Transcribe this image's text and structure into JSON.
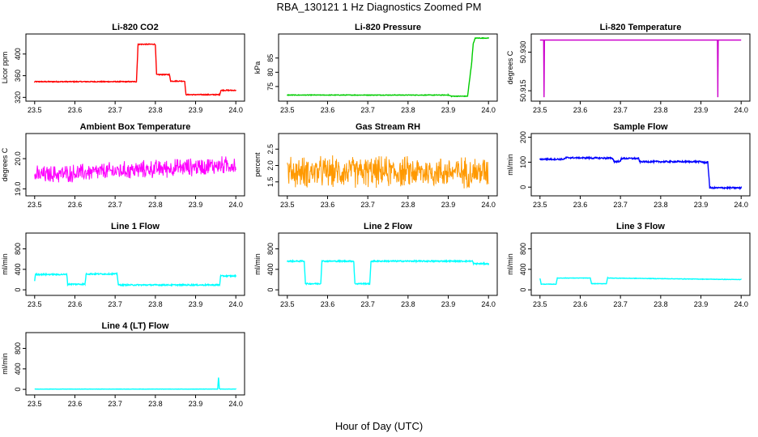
{
  "figure": {
    "title": "RBA_130121  1 Hz Diagnostics Zoomed PM",
    "xlabel": "Hour of Day (UTC)"
  },
  "chart_data": [
    {
      "id": "p1",
      "type": "line",
      "title": "Li-820 CO2",
      "ylabel": "Licor ppm",
      "color": "#ff0000",
      "xlim": [
        23.5,
        24.0
      ],
      "ylim": [
        318,
        432
      ],
      "xticks": [
        "23.5",
        "23.6",
        "23.7",
        "23.8",
        "23.9",
        "24.0"
      ],
      "yticks": [
        320,
        360,
        400
      ],
      "series": [
        {
          "name": "CO2",
          "noise": 0.8,
          "points": [
            [
              23.5,
              349
            ],
            [
              23.753,
              349
            ],
            [
              23.757,
              418
            ],
            [
              23.8,
              418
            ],
            [
              23.803,
              362
            ],
            [
              23.835,
              362
            ],
            [
              23.838,
              350
            ],
            [
              23.873,
              350
            ],
            [
              23.876,
              325
            ],
            [
              23.96,
              325
            ],
            [
              23.963,
              333
            ],
            [
              24.0,
              333
            ]
          ]
        }
      ]
    },
    {
      "id": "p2",
      "type": "line",
      "title": "Li-820 Pressure",
      "ylabel": "kPa",
      "color": "#00cc00",
      "xlim": [
        23.5,
        24.0
      ],
      "ylim": [
        70.8,
        92.5
      ],
      "xticks": [
        "23.5",
        "23.6",
        "23.7",
        "23.8",
        "23.9",
        "24.0"
      ],
      "yticks": [
        75,
        80,
        85
      ],
      "series": [
        {
          "name": "Pressure",
          "noise": 0.1,
          "points": [
            [
              23.5,
              72
            ],
            [
              23.9,
              72
            ],
            [
              23.908,
              71.6
            ],
            [
              23.948,
              71.6
            ],
            [
              23.958,
              83
            ],
            [
              23.962,
              90
            ],
            [
              23.967,
              92
            ],
            [
              24.0,
              92
            ]
          ]
        }
      ]
    },
    {
      "id": "p3",
      "type": "line",
      "title": "Li-820 Temperature",
      "ylabel": "degrees C",
      "color": "#cc00cc",
      "xlim": [
        23.5,
        24.0
      ],
      "ylim": [
        50.912,
        50.936
      ],
      "xticks": [
        "23.5",
        "23.6",
        "23.7",
        "23.8",
        "23.9",
        "24.0"
      ],
      "yticks": [
        "50.915",
        "50.930"
      ],
      "series": [
        {
          "name": "Temperature",
          "noise": 0,
          "points": [
            [
              23.5,
              50.9347
            ],
            [
              23.509,
              50.9347
            ],
            [
              23.51,
              50.9125
            ],
            [
              23.511,
              50.9347
            ],
            [
              23.941,
              50.9347
            ],
            [
              23.942,
              50.9125
            ],
            [
              23.943,
              50.9347
            ],
            [
              24.0,
              50.9347
            ]
          ]
        }
      ]
    },
    {
      "id": "p4",
      "type": "noise",
      "title": "Ambient Box Temperature",
      "ylabel": "degrees C",
      "color": "#ff00ff",
      "xlim": [
        23.5,
        24.0
      ],
      "ylim": [
        18.85,
        20.75
      ],
      "xticks": [
        "23.5",
        "23.6",
        "23.7",
        "23.8",
        "23.9",
        "24.0"
      ],
      "yticks": [
        "19.0",
        "20.0"
      ],
      "series": [
        {
          "name": "Ambient",
          "base_start": 19.45,
          "base_end": 19.8,
          "amp": 0.35,
          "min": 18.9,
          "max": 20.7
        }
      ]
    },
    {
      "id": "p5",
      "type": "noise",
      "title": "Gas Stream RH",
      "ylabel": "percent",
      "color": "#ff9900",
      "xlim": [
        23.5,
        24.0
      ],
      "ylim": [
        1.15,
        2.9
      ],
      "xticks": [
        "23.5",
        "23.6",
        "23.7",
        "23.8",
        "23.9",
        "24.0"
      ],
      "yticks": [
        "1.5",
        "2.0",
        "2.5"
      ],
      "series": [
        {
          "name": "RH",
          "base_start": 1.8,
          "base_end": 1.8,
          "amp": 0.55,
          "min": 1.2,
          "max": 2.85
        }
      ]
    },
    {
      "id": "p6",
      "type": "line",
      "title": "Sample Flow",
      "ylabel": "ml/min",
      "color": "#0000ff",
      "xlim": [
        23.5,
        24.0
      ],
      "ylim": [
        -25,
        205
      ],
      "xticks": [
        "23.5",
        "23.6",
        "23.7",
        "23.8",
        "23.9",
        "24.0"
      ],
      "yticks": [
        0,
        100,
        200
      ],
      "series": [
        {
          "name": "Sample",
          "noise": 3,
          "points": [
            [
              23.5,
              112
            ],
            [
              23.56,
              112
            ],
            [
              23.565,
              118
            ],
            [
              23.68,
              116
            ],
            [
              23.685,
              102
            ],
            [
              23.7,
              104
            ],
            [
              23.702,
              115
            ],
            [
              23.745,
              115
            ],
            [
              23.748,
              102
            ],
            [
              23.9,
              102
            ],
            [
              23.91,
              98
            ],
            [
              23.917,
              100
            ],
            [
              23.922,
              -3
            ],
            [
              24.0,
              -3
            ]
          ]
        }
      ]
    },
    {
      "id": "p7",
      "type": "line",
      "title": "Line 1 Flow",
      "ylabel": "ml/min",
      "color": "#00ffff",
      "xlim": [
        23.5,
        24.0
      ],
      "ylim": [
        -60,
        1060
      ],
      "xticks": [
        "23.5",
        "23.6",
        "23.7",
        "23.8",
        "23.9",
        "24.0"
      ],
      "yticks": [
        0,
        400,
        800
      ],
      "series": [
        {
          "name": "Line1",
          "noise": 12,
          "points": [
            [
              23.5,
              180
            ],
            [
              23.502,
              300
            ],
            [
              23.58,
              300
            ],
            [
              23.582,
              110
            ],
            [
              23.625,
              110
            ],
            [
              23.628,
              310
            ],
            [
              23.705,
              310
            ],
            [
              23.708,
              95
            ],
            [
              23.96,
              95
            ],
            [
              23.962,
              270
            ],
            [
              24.0,
              270
            ]
          ]
        }
      ]
    },
    {
      "id": "p8",
      "type": "line",
      "title": "Line 2 Flow",
      "ylabel": "ml/min",
      "color": "#00ffff",
      "xlim": [
        23.5,
        24.0
      ],
      "ylim": [
        -60,
        1060
      ],
      "xticks": [
        "23.5",
        "23.6",
        "23.7",
        "23.8",
        "23.9",
        "24.0"
      ],
      "yticks": [
        0,
        400,
        800
      ],
      "series": [
        {
          "name": "Line2",
          "noise": 12,
          "points": [
            [
              23.5,
              560
            ],
            [
              23.542,
              560
            ],
            [
              23.545,
              120
            ],
            [
              23.583,
              120
            ],
            [
              23.586,
              560
            ],
            [
              23.665,
              560
            ],
            [
              23.668,
              120
            ],
            [
              23.705,
              120
            ],
            [
              23.708,
              560
            ],
            [
              23.96,
              560
            ],
            [
              23.963,
              510
            ],
            [
              24.0,
              510
            ]
          ]
        }
      ]
    },
    {
      "id": "p9",
      "type": "line",
      "title": "Line 3 Flow",
      "ylabel": "ml/min",
      "color": "#00ffff",
      "xlim": [
        23.5,
        24.0
      ],
      "ylim": [
        -60,
        1060
      ],
      "xticks": [
        "23.5",
        "23.6",
        "23.7",
        "23.8",
        "23.9",
        "24.0"
      ],
      "yticks": [
        0,
        400,
        800
      ],
      "series": [
        {
          "name": "Line3",
          "noise": 4,
          "points": [
            [
              23.5,
              220
            ],
            [
              23.503,
              110
            ],
            [
              23.54,
              110
            ],
            [
              23.543,
              230
            ],
            [
              23.625,
              230
            ],
            [
              23.628,
              120
            ],
            [
              23.665,
              120
            ],
            [
              23.668,
              230
            ],
            [
              24.0,
              200
            ]
          ]
        }
      ]
    },
    {
      "id": "p10",
      "type": "line",
      "title": "Line 4 (LT) Flow",
      "ylabel": "ml/min",
      "color": "#00ffff",
      "xlim": [
        23.5,
        24.0
      ],
      "ylim": [
        -60,
        1060
      ],
      "xticks": [
        "23.5",
        "23.6",
        "23.7",
        "23.8",
        "23.9",
        "24.0"
      ],
      "yticks": [
        0,
        400,
        800
      ],
      "series": [
        {
          "name": "Line4",
          "noise": 2,
          "points": [
            [
              23.5,
              5
            ],
            [
              23.955,
              5
            ],
            [
              23.957,
              230
            ],
            [
              23.959,
              20
            ],
            [
              23.961,
              5
            ],
            [
              24.0,
              5
            ]
          ]
        }
      ]
    }
  ]
}
